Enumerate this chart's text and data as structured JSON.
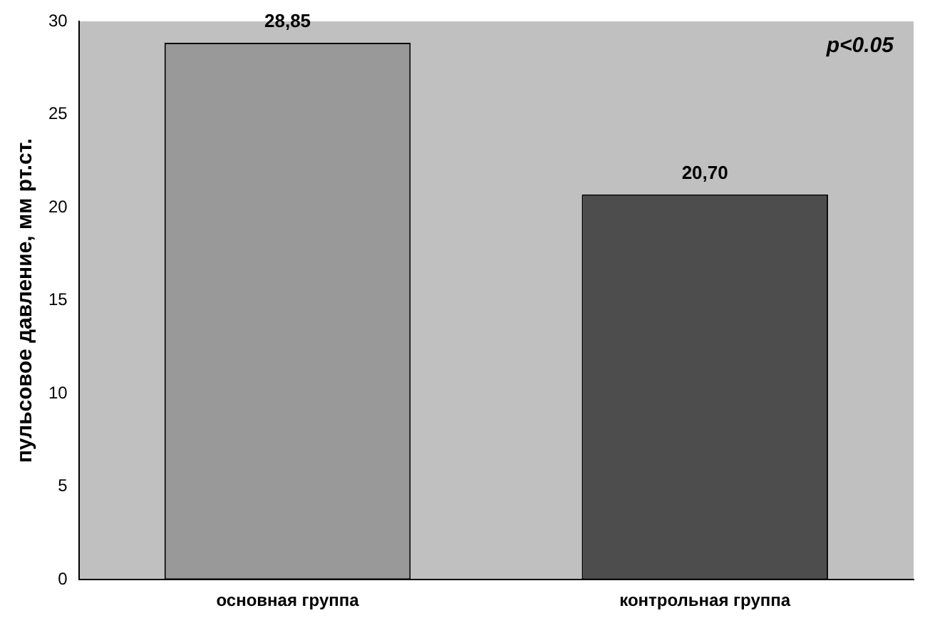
{
  "chart_data": {
    "type": "bar",
    "ylabel": "пульсовое давление, мм рт.ст.",
    "categories": [
      "основная группа",
      "контрольная группа"
    ],
    "values": [
      28.85,
      20.7
    ],
    "value_labels": [
      "28,85",
      "20,70"
    ],
    "colors": [
      "#999999",
      "#4d4d4d"
    ],
    "ylim": [
      0,
      30
    ],
    "yticks": [
      0,
      5,
      10,
      15,
      20,
      25,
      30
    ],
    "grid": false,
    "legend": false,
    "annotations": [
      "p<0.05"
    ]
  }
}
